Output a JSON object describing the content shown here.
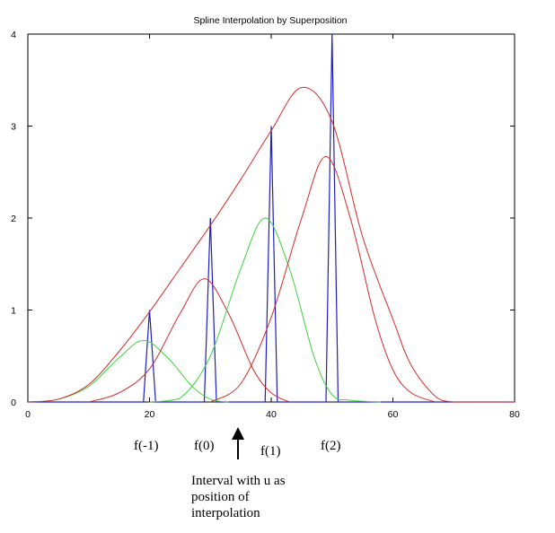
{
  "chart_data": {
    "type": "line",
    "title": "Spline Interpolation by Superposition",
    "xlabel": "",
    "ylabel": "",
    "xlim": [
      0,
      80
    ],
    "ylim": [
      0,
      4
    ],
    "x_ticks": [
      "0",
      "20",
      "40",
      "60",
      "80"
    ],
    "y_ticks": [
      "0",
      "1",
      "2",
      "3",
      "4"
    ],
    "grid": false,
    "legend": "none",
    "colors": {
      "blue": "#1f1fbf",
      "red": "#d42a2a",
      "green": "#3fd23f",
      "axes": "#000000"
    },
    "series": [
      {
        "color": "blue",
        "x": [
          0,
          19,
          20,
          21,
          29,
          30,
          31,
          39,
          40,
          41,
          49,
          50,
          51,
          80
        ],
        "y": [
          0,
          0,
          1,
          0,
          0,
          2,
          0,
          0,
          3,
          0,
          0,
          4,
          0,
          0
        ]
      },
      {
        "color": "green",
        "x": [
          0,
          5,
          10,
          15,
          19,
          23,
          27,
          30,
          33
        ],
        "y": [
          0,
          0.03,
          0.17,
          0.48,
          0.67,
          0.48,
          0.17,
          0.03,
          0
        ]
      },
      {
        "color": "red",
        "x": [
          10,
          15,
          20,
          25,
          29,
          33,
          37,
          40,
          43
        ],
        "y": [
          0,
          0.1,
          0.36,
          0.96,
          1.34,
          0.96,
          0.36,
          0.1,
          0
        ]
      },
      {
        "color": "green",
        "x": [
          20,
          25,
          30,
          35,
          39,
          43,
          47,
          50,
          53,
          58
        ],
        "y": [
          0,
          0.04,
          0.5,
          1.45,
          2.0,
          1.45,
          0.5,
          0.08,
          0.02,
          0
        ]
      },
      {
        "color": "red",
        "x": [
          30,
          35,
          40,
          45,
          49,
          53,
          57,
          60,
          63,
          67
        ],
        "y": [
          0,
          0.2,
          0.92,
          2.0,
          2.67,
          2.0,
          0.92,
          0.35,
          0.1,
          0
        ]
      },
      {
        "color": "red",
        "x": [
          0,
          5,
          10,
          15,
          20,
          25,
          30,
          35,
          40,
          45,
          50,
          55,
          60,
          63,
          67,
          70,
          75,
          80
        ],
        "y": [
          0,
          0.03,
          0.19,
          0.55,
          0.98,
          1.45,
          1.92,
          2.42,
          2.95,
          3.42,
          3.05,
          1.8,
          0.9,
          0.4,
          0.06,
          0,
          0,
          0
        ]
      }
    ],
    "annotations": {
      "labels": [
        "f(-1)",
        "f(0)",
        "f(1)",
        "f(2)"
      ],
      "caption_lines": [
        "Interval with u as",
        "position of",
        "interpolation"
      ]
    }
  }
}
